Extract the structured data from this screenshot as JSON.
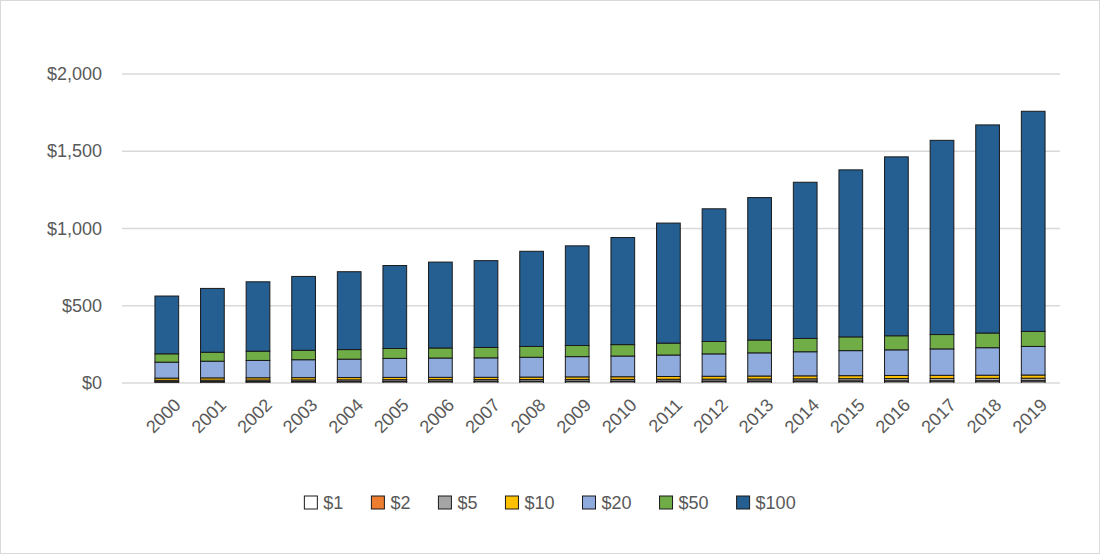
{
  "chart_data": {
    "type": "bar",
    "stacked": true,
    "grid": true,
    "legend": "bottom",
    "categories": [
      "2000",
      "2001",
      "2002",
      "2003",
      "2004",
      "2005",
      "2006",
      "2007",
      "2008",
      "2009",
      "2010",
      "2011",
      "2012",
      "2013",
      "2014",
      "2015",
      "2016",
      "2017",
      "2018",
      "2019"
    ],
    "ylim": [
      0,
      2000
    ],
    "yticks": [
      {
        "value": 0,
        "label": "$0"
      },
      {
        "value": 500,
        "label": "$500"
      },
      {
        "value": 1000,
        "label": "$1,000"
      },
      {
        "value": 1500,
        "label": "$1,500"
      },
      {
        "value": 2000,
        "label": "$2,000"
      }
    ],
    "series": [
      {
        "name": "$1",
        "color": "#ffffff",
        "values": [
          7.6,
          8.0,
          8.3,
          8.5,
          8.8,
          9.1,
          9.4,
          9.6,
          9.8,
          10.0,
          10.1,
          10.3,
          10.6,
          10.9,
          11.4,
          11.7,
          12.0,
          12.1,
          12.3,
          12.5
        ]
      },
      {
        "name": "$2",
        "color": "#ed7d31",
        "values": [
          1.2,
          1.3,
          1.4,
          1.5,
          1.5,
          1.6,
          1.6,
          1.7,
          1.8,
          1.9,
          1.9,
          2.0,
          2.0,
          2.1,
          2.1,
          2.2,
          2.2,
          2.3,
          2.3,
          2.4
        ]
      },
      {
        "name": "$5",
        "color": "#a5a5a5",
        "values": [
          8.9,
          9.3,
          9.6,
          9.9,
          10.2,
          10.6,
          10.6,
          10.6,
          10.9,
          11.2,
          11.4,
          11.9,
          12.5,
          13.0,
          13.4,
          14.0,
          14.6,
          15.1,
          15.6,
          16.2
        ]
      },
      {
        "name": "$10",
        "color": "#ffc000",
        "values": [
          14.2,
          14.6,
          14.7,
          14.8,
          14.8,
          15.0,
          15.0,
          15.0,
          16.0,
          16.6,
          17.1,
          17.9,
          18.5,
          19.2,
          19.4,
          19.6,
          19.9,
          20.2,
          20.3,
          20.6
        ]
      },
      {
        "name": "$20",
        "color": "#8faadc",
        "values": [
          103,
          108,
          112,
          116,
          119,
          123,
          125,
          126,
          128,
          131,
          134,
          139,
          145,
          150,
          156,
          162,
          166,
          171,
          178,
          185
        ]
      },
      {
        "name": "$50",
        "color": "#70ad47",
        "values": [
          54,
          58,
          60,
          61,
          62,
          64,
          65,
          67,
          70,
          72,
          74,
          77,
          80,
          83,
          86,
          89,
          91,
          93,
          95,
          97
        ]
      },
      {
        "name": "$100",
        "color": "#255e91",
        "values": [
          374,
          413,
          449,
          478,
          504,
          537,
          556,
          562,
          616,
          645,
          693,
          777,
          859,
          922,
          1011,
          1081,
          1158,
          1257,
          1347,
          1425
        ]
      }
    ]
  }
}
